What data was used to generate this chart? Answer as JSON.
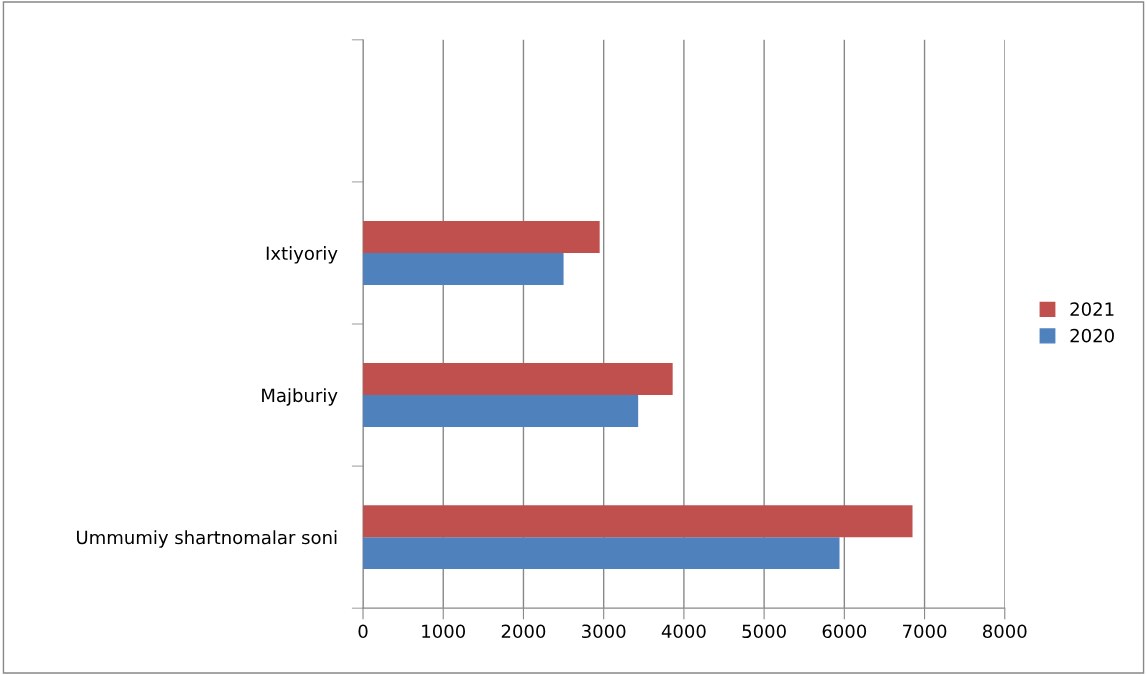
{
  "chart_data": {
    "type": "bar",
    "orientation": "horizontal",
    "categories": [
      null,
      "Ixtiyoriy",
      "Majburiy",
      "Ummumiy shartnomalar soni"
    ],
    "series": [
      {
        "name": "2020",
        "color": "#4f81bd",
        "values": [
          null,
          2500,
          3430,
          5940
        ]
      },
      {
        "name": "2021",
        "color": "#c0504d",
        "values": [
          null,
          2950,
          3860,
          6850
        ]
      }
    ],
    "xlim": [
      0,
      8000
    ],
    "xticks": [
      0,
      1000,
      2000,
      3000,
      4000,
      5000,
      6000,
      7000,
      8000
    ],
    "grid": "x",
    "legend": "right"
  }
}
